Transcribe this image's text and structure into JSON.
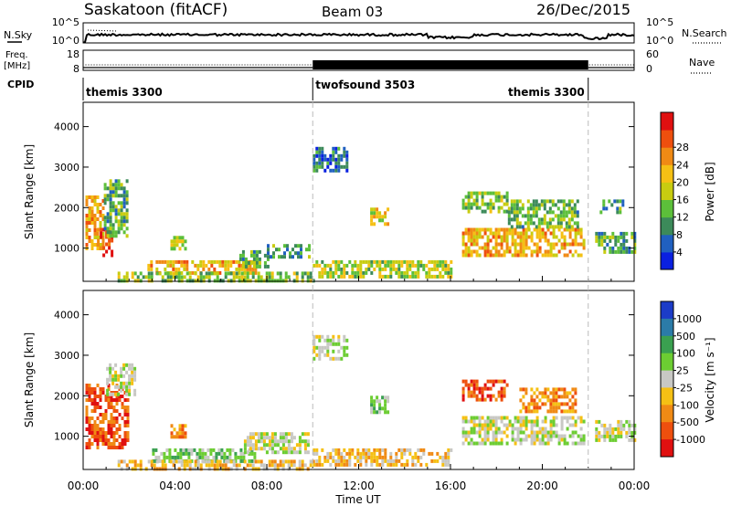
{
  "header": {
    "station": "Saskatoon (fitACF)",
    "beam": "Beam 03",
    "date": "26/Dec/2015"
  },
  "top_panels": {
    "nsky_label": "N.Sky",
    "nsearch_label": "N.Search",
    "freq_label_1": "Freq.",
    "freq_label_2": "[MHz]",
    "nave_label": "Nave",
    "cpid_label": "CPID",
    "nsky_ticks": [
      "10^5",
      "10^0"
    ],
    "nsearch_ticks": [
      "10^5",
      "10^0"
    ],
    "freq_ticks": [
      "18",
      "8"
    ],
    "nave_ticks": [
      "60",
      "0"
    ]
  },
  "cpid": {
    "segments": [
      {
        "label": "themis 3300",
        "start": 0,
        "end": 10,
        "label_align": "left"
      },
      {
        "label": "twofsound 3503",
        "start": 10,
        "end": 22,
        "label_align": "left"
      },
      {
        "label": "themis 3300",
        "start": 10,
        "end": 22,
        "label_align": "right"
      }
    ]
  },
  "chart_data": [
    {
      "type": "heatmap",
      "name": "power",
      "ylabel": "Slant Range [km]",
      "xlabel": "",
      "xlim": [
        0,
        24
      ],
      "ylim": [
        180,
        4600
      ],
      "yticks": [
        1000,
        2000,
        3000,
        4000
      ],
      "colorbar": {
        "label": "Power [dB]",
        "ticks": [
          "4",
          "8",
          "12",
          "16",
          "20",
          "24",
          "28"
        ],
        "range": [
          0,
          30
        ],
        "colors": [
          "#0a20e0",
          "#2060c0",
          "#3c8a5a",
          "#5cbf3a",
          "#c8cc10",
          "#f5c014",
          "#f08a14",
          "#ee4f0e",
          "#e01010"
        ]
      },
      "regions": [
        {
          "t0": 0.1,
          "t1": 0.9,
          "r0": 1000,
          "r1": 2300,
          "v": 20
        },
        {
          "t0": 0.6,
          "t1": 1.3,
          "r0": 800,
          "r1": 1500,
          "v": 27
        },
        {
          "t0": 0.9,
          "t1": 1.9,
          "r0": 1300,
          "r1": 2700,
          "v": 10
        },
        {
          "t0": 3.8,
          "t1": 4.5,
          "r0": 950,
          "r1": 1300,
          "v": 15
        },
        {
          "t0": 2.8,
          "t1": 7.5,
          "r0": 350,
          "r1": 700,
          "v": 20
        },
        {
          "t0": 6.8,
          "t1": 8.0,
          "r0": 550,
          "r1": 950,
          "v": 10
        },
        {
          "t0": 8.0,
          "t1": 9.8,
          "r0": 800,
          "r1": 1100,
          "v": 8
        },
        {
          "t0": 1.5,
          "t1": 10.0,
          "r0": 200,
          "r1": 420,
          "v": 12
        },
        {
          "t0": 10.0,
          "t1": 11.5,
          "r0": 2900,
          "r1": 3500,
          "v": 6
        },
        {
          "t0": 12.5,
          "t1": 13.3,
          "r0": 1600,
          "r1": 2000,
          "v": 16
        },
        {
          "t0": 10.0,
          "t1": 16.0,
          "r0": 250,
          "r1": 700,
          "v": 14
        },
        {
          "t0": 16.5,
          "t1": 21.8,
          "r0": 800,
          "r1": 1500,
          "v": 20
        },
        {
          "t0": 16.5,
          "t1": 18.5,
          "r0": 1900,
          "r1": 2400,
          "v": 12
        },
        {
          "t0": 18.5,
          "t1": 21.5,
          "r0": 1500,
          "r1": 2200,
          "v": 11
        },
        {
          "t0": 22.3,
          "t1": 24.0,
          "r0": 900,
          "r1": 1400,
          "v": 10
        },
        {
          "t0": 22.5,
          "t1": 23.5,
          "r0": 1900,
          "r1": 2200,
          "v": 8
        }
      ]
    },
    {
      "type": "heatmap",
      "name": "velocity",
      "ylabel": "Slant Range [km]",
      "xlabel": "Time UT",
      "xlim": [
        0,
        24
      ],
      "ylim": [
        180,
        4600
      ],
      "yticks": [
        1000,
        2000,
        3000,
        4000
      ],
      "xticks": [
        "00:00",
        "04:00",
        "08:00",
        "12:00",
        "16:00",
        "20:00",
        "00:00"
      ],
      "colorbar": {
        "label": "Velocity [m s⁻¹]",
        "ticks": [
          "1000",
          "500",
          "100",
          "25",
          "-25",
          "-100",
          "-500",
          "-1000"
        ],
        "colors": [
          "#1c3cc8",
          "#2b7ba8",
          "#3aa050",
          "#6ccd32",
          "#c8c8c4",
          "#f5c014",
          "#f08a14",
          "#ee4f0e",
          "#e01010"
        ]
      },
      "regions": [
        {
          "t0": 0.1,
          "t1": 1.9,
          "r0": 700,
          "r1": 2300,
          "v": 7
        },
        {
          "t0": 1.0,
          "t1": 2.3,
          "r0": 2000,
          "r1": 2800,
          "v": 4
        },
        {
          "t0": 3.8,
          "t1": 4.5,
          "r0": 950,
          "r1": 1300,
          "v": 6
        },
        {
          "t0": 3.0,
          "t1": 7.5,
          "r0": 350,
          "r1": 700,
          "v": 3
        },
        {
          "t0": 7.0,
          "t1": 9.8,
          "r0": 600,
          "r1": 1100,
          "v": 4
        },
        {
          "t0": 1.5,
          "t1": 10.0,
          "r0": 200,
          "r1": 420,
          "v": 5
        },
        {
          "t0": 10.0,
          "t1": 11.5,
          "r0": 2900,
          "r1": 3500,
          "v": 4
        },
        {
          "t0": 12.5,
          "t1": 13.3,
          "r0": 1600,
          "r1": 2000,
          "v": 3
        },
        {
          "t0": 10.0,
          "t1": 16.0,
          "r0": 250,
          "r1": 700,
          "v": 5
        },
        {
          "t0": 16.5,
          "t1": 21.8,
          "r0": 800,
          "r1": 1500,
          "v": 4
        },
        {
          "t0": 16.5,
          "t1": 18.5,
          "r0": 1900,
          "r1": 2400,
          "v": 7
        },
        {
          "t0": 19.0,
          "t1": 21.5,
          "r0": 1600,
          "r1": 2200,
          "v": 6
        },
        {
          "t0": 22.3,
          "t1": 24.0,
          "r0": 900,
          "r1": 1400,
          "v": 4
        }
      ]
    }
  ]
}
